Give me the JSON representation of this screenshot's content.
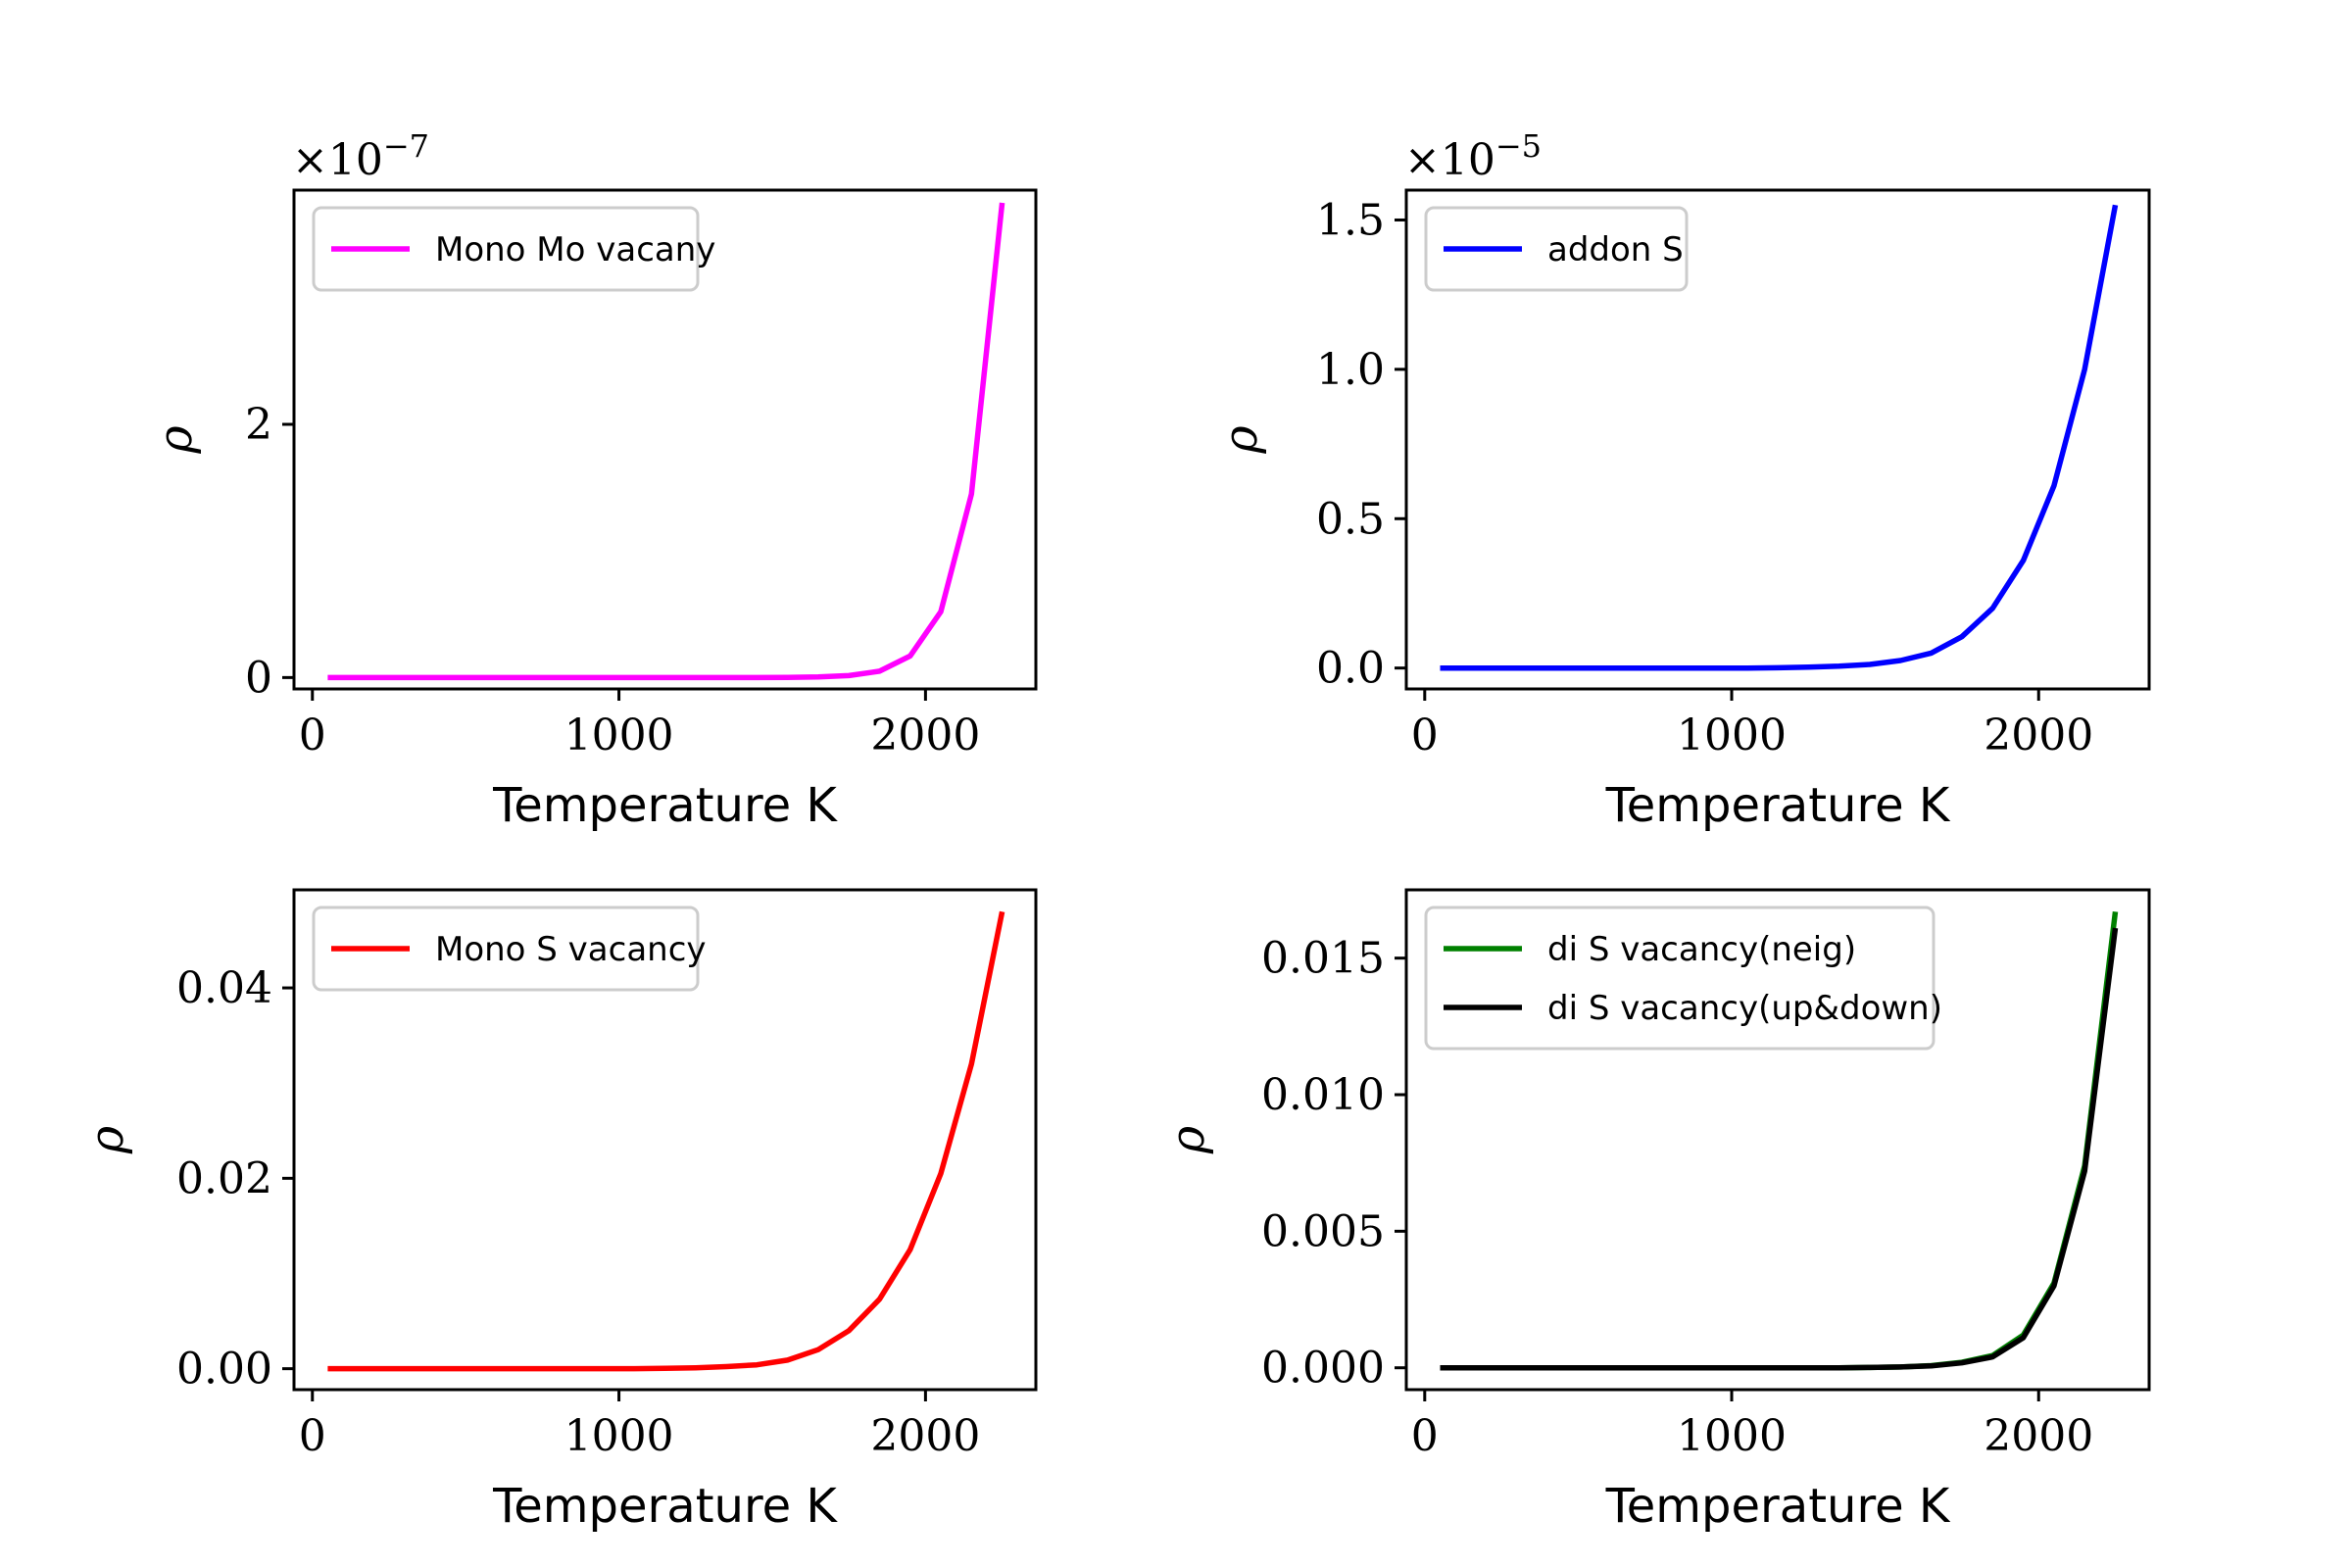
{
  "chart_data": [
    {
      "type": "line",
      "xlabel": "Temperature K",
      "ylabel": "ρ",
      "offset_base": "×10",
      "offset_exp": "−7",
      "xlim": [
        -60,
        2360
      ],
      "ylim": [
        -0.09,
        3.85
      ],
      "xticks": [
        0,
        1000,
        2000
      ],
      "xtick_labels": [
        "0",
        "1000",
        "2000"
      ],
      "yticks": [
        0,
        2
      ],
      "ytick_labels": [
        "0",
        "2"
      ],
      "legend_position": "upper left",
      "grid": false,
      "series": [
        {
          "name": "Mono Mo vacany",
          "color": "#ff00ff",
          "x": [
            50,
            150,
            250,
            350,
            450,
            550,
            650,
            750,
            850,
            950,
            1050,
            1150,
            1250,
            1350,
            1450,
            1550,
            1650,
            1750,
            1850,
            1950,
            2050,
            2150,
            2250
          ],
          "y": [
            0,
            0,
            0,
            0,
            0,
            0,
            0,
            0,
            0,
            0,
            0,
            0,
            0,
            0,
            0,
            0.001,
            0.005,
            0.015,
            0.05,
            0.17,
            0.52,
            1.45,
            3.75
          ]
        }
      ]
    },
    {
      "type": "line",
      "xlabel": "Temperature K",
      "ylabel": "ρ",
      "offset_base": "×10",
      "offset_exp": "−5",
      "xlim": [
        -60,
        2360
      ],
      "ylim": [
        -0.07,
        1.6
      ],
      "xticks": [
        0,
        1000,
        2000
      ],
      "xtick_labels": [
        "0",
        "1000",
        "2000"
      ],
      "yticks": [
        0,
        0.5,
        1.0,
        1.5
      ],
      "ytick_labels": [
        "0.0",
        "0.5",
        "1.0",
        "1.5"
      ],
      "legend_position": "upper left",
      "grid": false,
      "series": [
        {
          "name": "addon S",
          "color": "#0000ff",
          "x": [
            50,
            150,
            250,
            350,
            450,
            550,
            650,
            750,
            850,
            950,
            1050,
            1150,
            1250,
            1350,
            1450,
            1550,
            1650,
            1750,
            1850,
            1950,
            2050,
            2150,
            2250
          ],
          "y": [
            0,
            0,
            0,
            0,
            0,
            0,
            0,
            0,
            0,
            0,
            0,
            0.001,
            0.003,
            0.006,
            0.012,
            0.025,
            0.05,
            0.105,
            0.2,
            0.36,
            0.61,
            1.0,
            1.55
          ]
        }
      ]
    },
    {
      "type": "line",
      "xlabel": "Temperature K",
      "ylabel": "ρ",
      "xlim": [
        -60,
        2360
      ],
      "ylim": [
        -0.0022,
        0.0503
      ],
      "xticks": [
        0,
        1000,
        2000
      ],
      "xtick_labels": [
        "0",
        "1000",
        "2000"
      ],
      "yticks": [
        0,
        0.02,
        0.04
      ],
      "ytick_labels": [
        "0.00",
        "0.02",
        "0.04"
      ],
      "legend_position": "upper left",
      "grid": false,
      "series": [
        {
          "name": "Mono S vacancy",
          "color": "#ff0000",
          "x": [
            50,
            150,
            250,
            350,
            450,
            550,
            650,
            750,
            850,
            950,
            1050,
            1150,
            1250,
            1350,
            1450,
            1550,
            1650,
            1750,
            1850,
            1950,
            2050,
            2150,
            2250
          ],
          "y": [
            0,
            0,
            0,
            0,
            0,
            0,
            0,
            0,
            0,
            0,
            0,
            3e-05,
            0.0001,
            0.00022,
            0.0004,
            0.0009,
            0.002,
            0.004,
            0.0073,
            0.0125,
            0.0205,
            0.032,
            0.048
          ]
        }
      ]
    },
    {
      "type": "line",
      "xlabel": "Temperature K",
      "ylabel": "ρ",
      "xlim": [
        -60,
        2360
      ],
      "ylim": [
        -0.0008,
        0.0175
      ],
      "xticks": [
        0,
        1000,
        2000
      ],
      "xtick_labels": [
        "0",
        "1000",
        "2000"
      ],
      "yticks": [
        0,
        0.005,
        0.01,
        0.015
      ],
      "ytick_labels": [
        "0.000",
        "0.005",
        "0.010",
        "0.015"
      ],
      "legend_position": "upper left",
      "grid": false,
      "series": [
        {
          "name": "di S vacancy(neig)",
          "color": "#008000",
          "x": [
            50,
            150,
            250,
            350,
            450,
            550,
            650,
            750,
            850,
            950,
            1050,
            1150,
            1250,
            1350,
            1450,
            1550,
            1650,
            1750,
            1850,
            1950,
            2050,
            2150,
            2250
          ],
          "y": [
            0,
            0,
            0,
            0,
            0,
            0,
            0,
            0,
            0,
            0,
            0,
            0,
            0,
            0,
            1e-05,
            3e-05,
            8e-05,
            0.0002,
            0.00045,
            0.0012,
            0.0031,
            0.0074,
            0.0167
          ]
        },
        {
          "name": "di S vacancy(up&down)",
          "color": "#000000",
          "x": [
            50,
            150,
            250,
            350,
            450,
            550,
            650,
            750,
            850,
            950,
            1050,
            1150,
            1250,
            1350,
            1450,
            1550,
            1650,
            1750,
            1850,
            1950,
            2050,
            2150,
            2250
          ],
          "y": [
            0,
            0,
            0,
            0,
            0,
            0,
            0,
            0,
            0,
            0,
            0,
            0,
            0,
            0,
            1e-05,
            3e-05,
            7e-05,
            0.00018,
            0.0004,
            0.0011,
            0.003,
            0.0072,
            0.0161
          ]
        }
      ]
    }
  ]
}
